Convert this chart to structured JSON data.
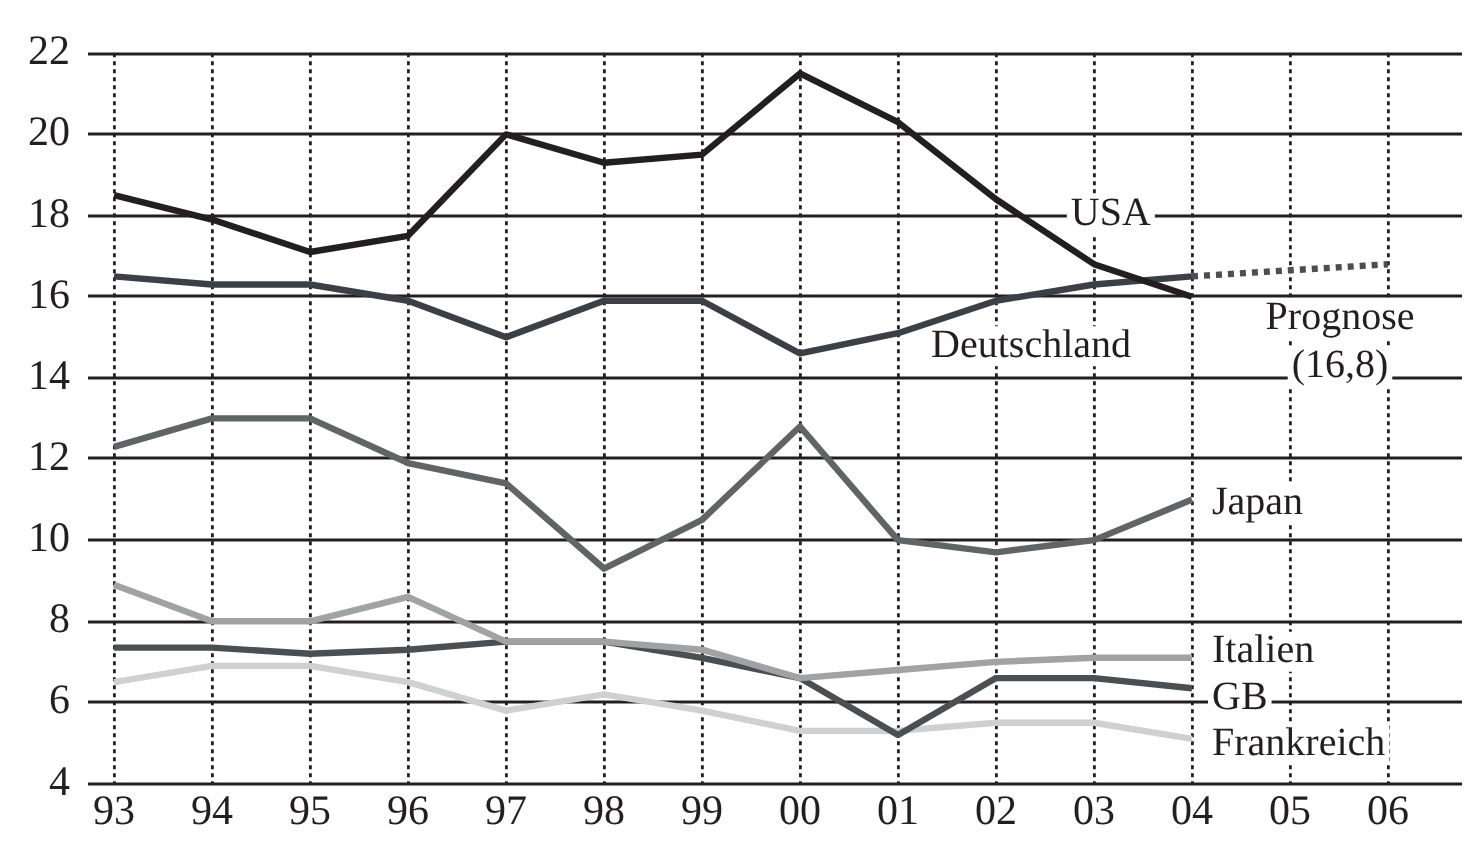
{
  "chart_data": {
    "type": "line",
    "categories": [
      "93",
      "94",
      "95",
      "96",
      "97",
      "98",
      "99",
      "00",
      "01",
      "02",
      "03",
      "04",
      "05",
      "06"
    ],
    "series": [
      {
        "name": "USA",
        "color": "#231f20",
        "values": [
          18.5,
          17.9,
          17.1,
          17.5,
          20.0,
          19.3,
          19.5,
          21.5,
          20.3,
          18.4,
          16.8,
          16.0,
          null,
          null
        ]
      },
      {
        "name": "Deutschland",
        "color": "#3a4045",
        "values": [
          16.5,
          16.3,
          16.3,
          15.9,
          15.0,
          15.9,
          15.9,
          14.6,
          15.1,
          15.9,
          16.3,
          16.5,
          null,
          null
        ]
      },
      {
        "name": "Prognose",
        "color": "#4a4f53",
        "line_style": "dotted",
        "values": [
          null,
          null,
          null,
          null,
          null,
          null,
          null,
          null,
          null,
          null,
          null,
          16.5,
          null,
          16.8
        ],
        "value_labels": [
          null,
          null,
          null,
          null,
          null,
          null,
          null,
          null,
          null,
          null,
          null,
          null,
          null,
          "(16,8)"
        ]
      },
      {
        "name": "Japan",
        "color": "#5f6467",
        "values": [
          12.3,
          13.0,
          13.0,
          11.9,
          11.4,
          9.3,
          10.5,
          12.8,
          10.0,
          9.7,
          10.0,
          11.0,
          null,
          null
        ]
      },
      {
        "name": "Italien",
        "color": "#a0a2a4",
        "values": [
          8.9,
          8.0,
          8.0,
          8.6,
          7.5,
          7.5,
          7.3,
          6.6,
          6.8,
          7.0,
          7.1,
          7.1,
          null,
          null
        ]
      },
      {
        "name": "GB",
        "color": "#4a4f53",
        "values": [
          7.35,
          7.35,
          7.2,
          7.3,
          7.5,
          7.5,
          7.1,
          6.6,
          5.2,
          6.6,
          6.6,
          6.35,
          null,
          null
        ]
      },
      {
        "name": "Frankreich",
        "color": "#cfd0d2",
        "values": [
          6.5,
          6.9,
          6.9,
          6.5,
          5.8,
          6.2,
          5.8,
          5.3,
          5.3,
          5.5,
          5.5,
          5.1,
          null,
          null
        ]
      }
    ],
    "ylim": [
      4,
      22
    ],
    "yticks": [
      4,
      6,
      8,
      10,
      12,
      14,
      16,
      18,
      20,
      22
    ],
    "grid": true,
    "legend": false,
    "marker": "none",
    "line_style": "solid"
  }
}
